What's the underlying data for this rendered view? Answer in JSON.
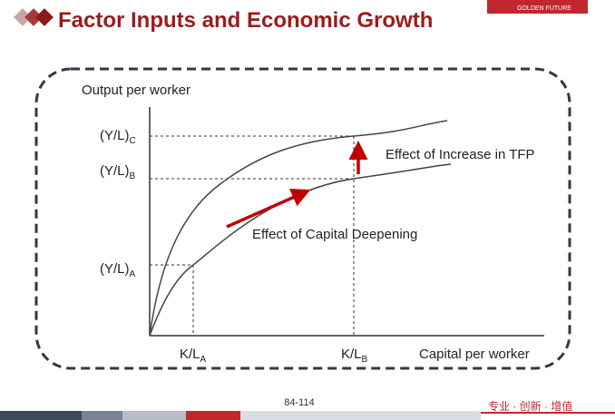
{
  "header": {
    "title": "Factor Inputs and Economic Growth",
    "logo_text": "GOLDEN FUTURE"
  },
  "diagram": {
    "y_axis_label": "Output per worker",
    "x_axis_label": "Capital per worker",
    "y_labels": [
      {
        "main": "(Y/L)",
        "sub": "C"
      },
      {
        "main": "(Y/L)",
        "sub": "B"
      },
      {
        "main": "(Y/L)",
        "sub": "A"
      }
    ],
    "x_labels": [
      {
        "main": "K/L",
        "sub": "A"
      },
      {
        "main": "K/L",
        "sub": "B"
      }
    ],
    "annotations": [
      "Effect of Increase in TFP",
      "Effect of Capital Deepening"
    ]
  },
  "footer": {
    "page": "84-114",
    "slogan": "专业 · 创新 · 增值"
  }
}
